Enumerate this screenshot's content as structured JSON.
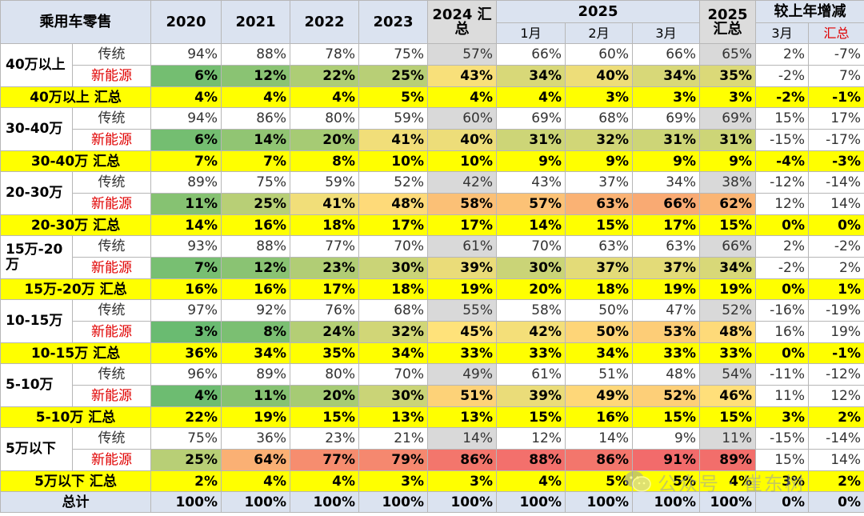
{
  "header": {
    "corner": "乘用车零售",
    "years": [
      "2020",
      "2021",
      "2022",
      "2023"
    ],
    "y2024": "2024 汇总",
    "y2025": "2025",
    "y2025_months": [
      "1月",
      "2月",
      "3月"
    ],
    "y2025_sum": "2025 汇总",
    "compare": "较上年增减",
    "compare_cols": [
      "3月",
      "汇总"
    ]
  },
  "row_labels": {
    "traditional": "传统",
    "nev": "新能源"
  },
  "groups": [
    {
      "name": "40万以上",
      "trad": [
        "94%",
        "88%",
        "78%",
        "75%",
        "57%",
        "66%",
        "60%",
        "66%",
        "65%",
        "2%",
        "-7%"
      ],
      "nev": [
        "6%",
        "12%",
        "22%",
        "25%",
        "43%",
        "34%",
        "40%",
        "34%",
        "35%",
        "-2%",
        "7%"
      ],
      "sum_label": "40万以上 汇总",
      "sum": [
        "4%",
        "4%",
        "4%",
        "5%",
        "4%",
        "4%",
        "3%",
        "3%",
        "3%",
        "-2%",
        "-1%"
      ]
    },
    {
      "name": "30-40万",
      "trad": [
        "94%",
        "86%",
        "80%",
        "59%",
        "60%",
        "69%",
        "68%",
        "69%",
        "69%",
        "15%",
        "17%"
      ],
      "nev": [
        "6%",
        "14%",
        "20%",
        "41%",
        "40%",
        "31%",
        "32%",
        "31%",
        "31%",
        "-15%",
        "-17%"
      ],
      "sum_label": "30-40万 汇总",
      "sum": [
        "7%",
        "7%",
        "8%",
        "10%",
        "10%",
        "9%",
        "9%",
        "9%",
        "9%",
        "-4%",
        "-3%"
      ]
    },
    {
      "name": "20-30万",
      "trad": [
        "89%",
        "75%",
        "59%",
        "52%",
        "42%",
        "43%",
        "37%",
        "34%",
        "38%",
        "-12%",
        "-14%"
      ],
      "nev": [
        "11%",
        "25%",
        "41%",
        "48%",
        "58%",
        "57%",
        "63%",
        "66%",
        "62%",
        "12%",
        "14%"
      ],
      "sum_label": "20-30万 汇总",
      "sum": [
        "14%",
        "16%",
        "18%",
        "17%",
        "17%",
        "14%",
        "15%",
        "17%",
        "15%",
        "0%",
        "0%"
      ]
    },
    {
      "name": "15万-20万",
      "trad": [
        "93%",
        "88%",
        "77%",
        "70%",
        "61%",
        "70%",
        "63%",
        "63%",
        "66%",
        "2%",
        "-2%"
      ],
      "nev": [
        "7%",
        "12%",
        "23%",
        "30%",
        "39%",
        "30%",
        "37%",
        "37%",
        "34%",
        "-2%",
        "2%"
      ],
      "sum_label": "15万-20万 汇总",
      "sum": [
        "16%",
        "16%",
        "17%",
        "18%",
        "19%",
        "20%",
        "18%",
        "19%",
        "19%",
        "0%",
        "1%"
      ]
    },
    {
      "name": "10-15万",
      "trad": [
        "97%",
        "92%",
        "76%",
        "68%",
        "55%",
        "58%",
        "50%",
        "47%",
        "52%",
        "-16%",
        "-19%"
      ],
      "nev": [
        "3%",
        "8%",
        "24%",
        "32%",
        "45%",
        "42%",
        "50%",
        "53%",
        "48%",
        "16%",
        "19%"
      ],
      "sum_label": "10-15万 汇总",
      "sum": [
        "36%",
        "34%",
        "35%",
        "34%",
        "33%",
        "33%",
        "34%",
        "33%",
        "33%",
        "0%",
        "-1%"
      ]
    },
    {
      "name": "5-10万",
      "trad": [
        "96%",
        "89%",
        "80%",
        "70%",
        "49%",
        "61%",
        "51%",
        "48%",
        "54%",
        "-11%",
        "-12%"
      ],
      "nev": [
        "4%",
        "11%",
        "20%",
        "30%",
        "51%",
        "39%",
        "49%",
        "52%",
        "46%",
        "11%",
        "12%"
      ],
      "sum_label": "5-10万 汇总",
      "sum": [
        "22%",
        "19%",
        "15%",
        "13%",
        "13%",
        "15%",
        "16%",
        "15%",
        "15%",
        "3%",
        "2%"
      ]
    },
    {
      "name": "5万以下",
      "trad": [
        "75%",
        "36%",
        "23%",
        "21%",
        "14%",
        "12%",
        "14%",
        "9%",
        "11%",
        "-15%",
        "-14%"
      ],
      "nev": [
        "25%",
        "64%",
        "77%",
        "79%",
        "86%",
        "88%",
        "86%",
        "91%",
        "89%",
        "15%",
        "14%"
      ],
      "sum_label": "5万以下 汇总",
      "sum": [
        "2%",
        "4%",
        "4%",
        "3%",
        "3%",
        "4%",
        "5%",
        "5%",
        "4%",
        "3%",
        "2%"
      ]
    }
  ],
  "total": {
    "label": "总计",
    "values": [
      "100%",
      "100%",
      "100%",
      "100%",
      "100%",
      "100%",
      "100%",
      "100%",
      "100%",
      "0%",
      "0%"
    ]
  },
  "watermark": {
    "text": "公众号 · 崔东树",
    "icon": "wechat-icon"
  },
  "colors": {
    "low_green": "#5fb870",
    "mid_yellow": "#ffe27a",
    "high_red": "#f26b6b",
    "gray_col": "#d9d9d9",
    "sum_yellow": "#ffff00",
    "header_blue": "#dbe3f0"
  }
}
